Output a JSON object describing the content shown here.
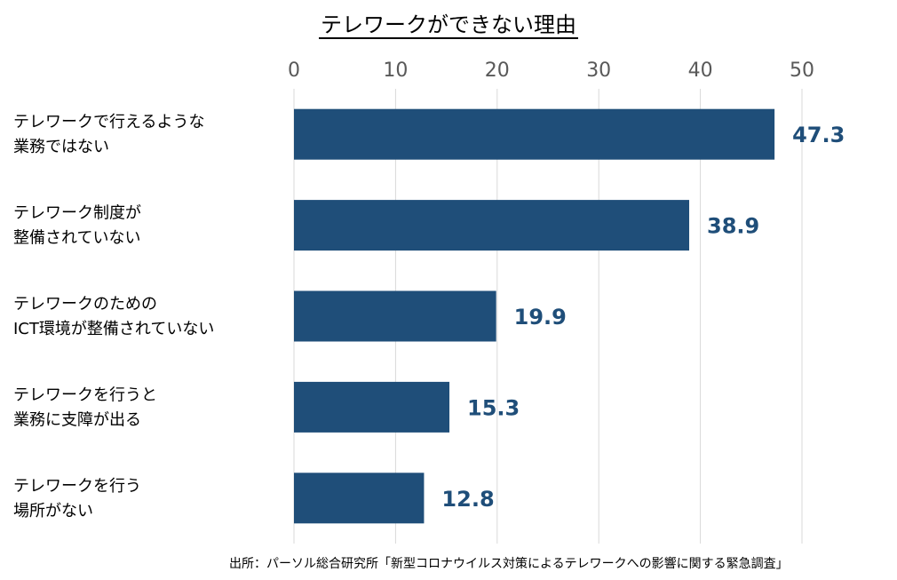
{
  "chart_data": {
    "type": "bar",
    "orientation": "horizontal",
    "title": "テレワークができない理由",
    "categories": [
      [
        "テレワークで行えるような",
        "業務ではない"
      ],
      [
        "テレワーク制度が",
        "整備されていない"
      ],
      [
        "テレワークのための",
        "ICT環境が整備されていない"
      ],
      [
        "テレワークを行うと",
        "業務に支障が出る"
      ],
      [
        "テレワークを行う",
        "場所がない"
      ]
    ],
    "values": [
      47.3,
      38.9,
      19.9,
      15.3,
      12.8
    ],
    "value_labels": [
      "47.3",
      "38.9",
      "19.9",
      "15.3",
      "12.8"
    ],
    "xlim": [
      0,
      50
    ],
    "x_ticks": [
      0,
      10,
      20,
      30,
      40,
      50
    ],
    "x_axis_position": "top",
    "grid": true,
    "xlabel": "",
    "ylabel": ""
  },
  "colors": {
    "bar": "#1f4e79",
    "value_label": "#1f4e79",
    "grid": "#d9d9d9",
    "tick": "#595959"
  },
  "source": "出所：パーソル総合研究所「新型コロナウイルス対策によるテレワークへの影響に関する緊急調査」"
}
